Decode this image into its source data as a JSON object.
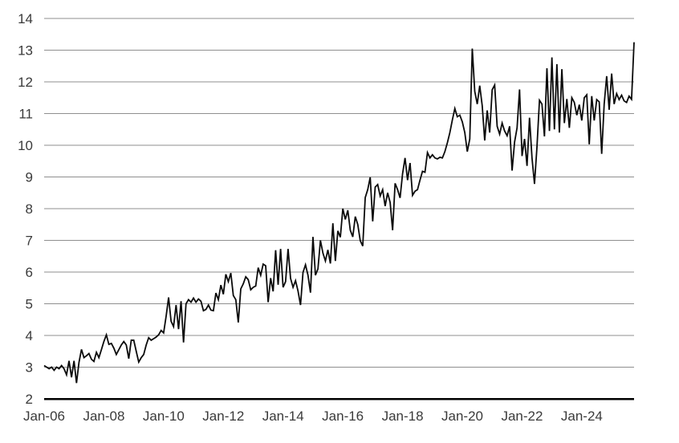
{
  "chart_data": {
    "type": "line",
    "title": "",
    "xlabel": "",
    "ylabel": "",
    "legend": "none",
    "grid": "horizontal",
    "frequency": "monthly",
    "x_start": "2006-01",
    "x_end": "2025-10",
    "ylim": [
      2,
      14
    ],
    "y_ticks": [
      2,
      3,
      4,
      5,
      6,
      7,
      8,
      9,
      10,
      11,
      12,
      13,
      14
    ],
    "x_tick_labels": [
      "Jan-06",
      "Jan-08",
      "Jan-10",
      "Jan-12",
      "Jan-14",
      "Jan-16",
      "Jan-18",
      "Jan-20",
      "Jan-22",
      "Jan-24"
    ],
    "x_tick_month_indices": [
      0,
      24,
      48,
      72,
      96,
      120,
      144,
      168,
      192,
      216
    ],
    "colors": {
      "line": "#0a0a0a",
      "gridline": "#8f8f8f",
      "axis": "#000000",
      "label": "#3a3a3a",
      "background": "#ffffff"
    },
    "values": [
      3.05,
      3.0,
      2.95,
      3.0,
      2.9,
      3.0,
      2.95,
      3.05,
      2.95,
      2.76,
      3.2,
      2.68,
      3.2,
      2.5,
      3.15,
      3.56,
      3.3,
      3.36,
      3.43,
      3.25,
      3.18,
      3.47,
      3.3,
      3.55,
      3.81,
      4.02,
      3.72,
      3.75,
      3.6,
      3.4,
      3.55,
      3.7,
      3.81,
      3.7,
      3.27,
      3.85,
      3.85,
      3.5,
      3.16,
      3.3,
      3.4,
      3.7,
      3.93,
      3.85,
      3.9,
      3.95,
      4.02,
      4.16,
      4.08,
      4.6,
      5.2,
      4.45,
      4.28,
      4.96,
      4.2,
      5.08,
      3.78,
      5.0,
      5.13,
      5.05,
      5.18,
      5.05,
      5.15,
      5.08,
      4.78,
      4.82,
      4.96,
      4.8,
      4.78,
      5.34,
      5.13,
      5.59,
      5.3,
      5.93,
      5.7,
      5.97,
      5.26,
      5.13,
      4.41,
      5.47,
      5.63,
      5.85,
      5.76,
      5.44,
      5.52,
      5.56,
      6.14,
      5.9,
      6.25,
      6.2,
      5.05,
      5.81,
      5.39,
      6.69,
      5.6,
      6.73,
      5.52,
      5.7,
      6.73,
      5.8,
      5.52,
      5.73,
      5.4,
      4.96,
      5.99,
      6.23,
      5.9,
      5.35,
      7.11,
      5.9,
      6.1,
      7.0,
      6.6,
      6.35,
      6.7,
      6.27,
      7.54,
      6.35,
      7.3,
      7.1,
      8.0,
      7.66,
      7.95,
      7.32,
      7.11,
      7.75,
      7.5,
      6.99,
      6.82,
      8.35,
      8.6,
      8.99,
      7.6,
      8.68,
      8.76,
      8.4,
      8.6,
      8.08,
      8.5,
      8.2,
      7.32,
      8.8,
      8.6,
      8.34,
      9.1,
      9.6,
      8.9,
      9.44,
      8.42,
      8.55,
      8.6,
      8.9,
      9.18,
      9.15,
      9.77,
      9.6,
      9.7,
      9.6,
      9.57,
      9.62,
      9.6,
      9.8,
      10.08,
      10.4,
      10.8,
      11.16,
      10.9,
      10.95,
      10.74,
      10.4,
      9.8,
      10.2,
      13.05,
      11.7,
      11.3,
      11.88,
      11.25,
      10.15,
      11.1,
      10.4,
      11.75,
      11.9,
      10.6,
      10.35,
      10.7,
      10.45,
      10.3,
      10.6,
      9.2,
      10.1,
      10.55,
      11.76,
      9.66,
      10.2,
      9.35,
      10.87,
      9.6,
      8.78,
      9.95,
      11.42,
      11.3,
      10.28,
      12.43,
      10.45,
      12.77,
      10.5,
      12.56,
      10.4,
      12.4,
      10.7,
      11.46,
      10.55,
      11.5,
      11.35,
      10.95,
      11.28,
      10.78,
      11.5,
      11.59,
      10.03,
      11.55,
      10.78,
      11.44,
      11.37,
      9.73,
      11.3,
      12.18,
      11.12,
      12.26,
      11.3,
      11.63,
      11.44,
      11.58,
      11.4,
      11.35,
      11.55,
      11.45,
      13.25
    ]
  }
}
